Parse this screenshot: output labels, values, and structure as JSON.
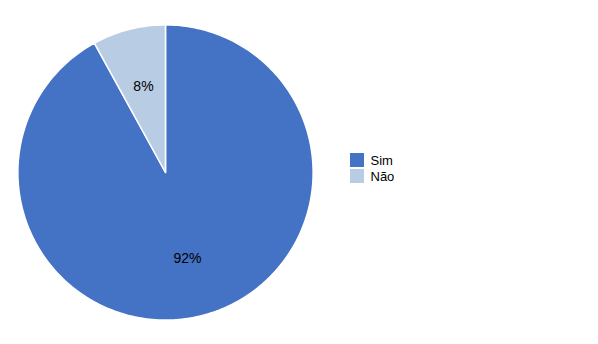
{
  "chart_data": {
    "type": "pie",
    "categories": [
      "Sim",
      "Não"
    ],
    "values": [
      92,
      8
    ],
    "value_labels": [
      "92%",
      "8%"
    ],
    "colors": [
      "#4472C4",
      "#B8CCE4"
    ],
    "data_labels": true,
    "legend": "right"
  }
}
